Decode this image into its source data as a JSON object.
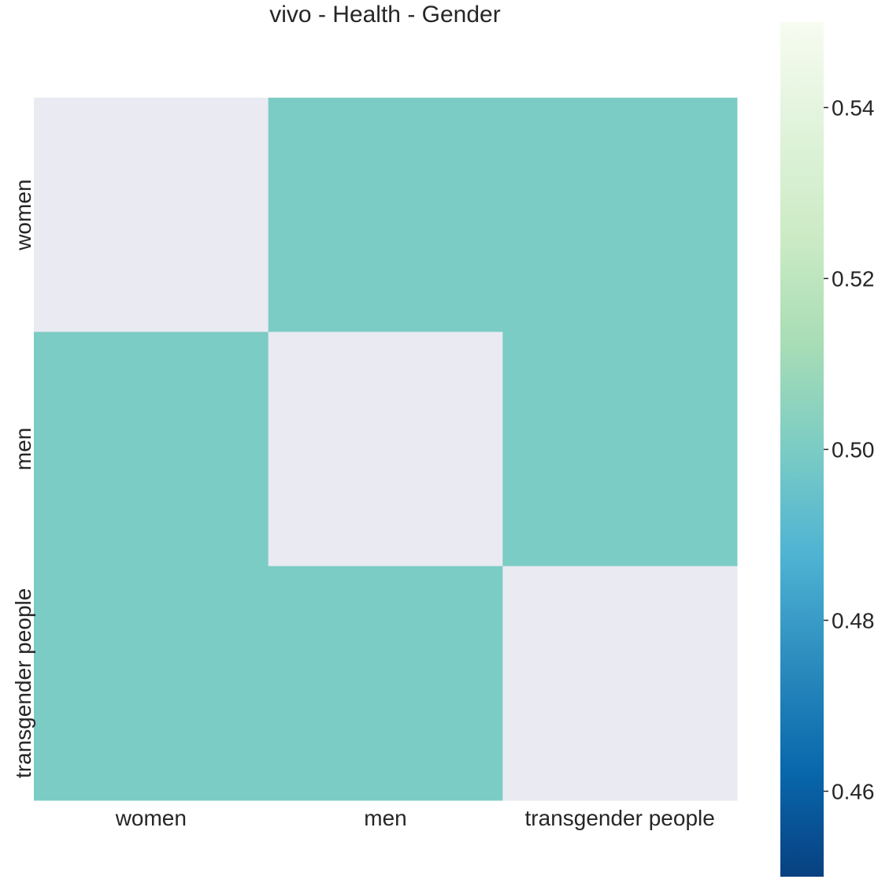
{
  "chart_data": {
    "type": "heatmap",
    "title": "vivo - Health - Gender",
    "xlabel": "",
    "ylabel": "",
    "x_categories": [
      "women",
      "men",
      "transgender people"
    ],
    "y_categories": [
      "women",
      "men",
      "transgender people"
    ],
    "values": [
      [
        null,
        0.5,
        0.5
      ],
      [
        0.5,
        null,
        0.5
      ],
      [
        0.5,
        0.5,
        null
      ]
    ],
    "colorbar": {
      "colormap": "GnBu_r",
      "vmin": 0.45,
      "vmax": 0.55,
      "ticks": [
        0.46,
        0.48,
        0.5,
        0.52,
        0.54
      ],
      "tick_labels": [
        "0.46",
        "0.48",
        "0.50",
        "0.52",
        "0.54"
      ],
      "stops": [
        "#084081",
        "#0868ac",
        "#2b8cbe",
        "#4eb3d3",
        "#7bccc4",
        "#a8ddb5",
        "#ccebc5",
        "#e0f3db",
        "#f7fcf0"
      ]
    },
    "masked_color": "#eaeaf2",
    "grid": false
  }
}
